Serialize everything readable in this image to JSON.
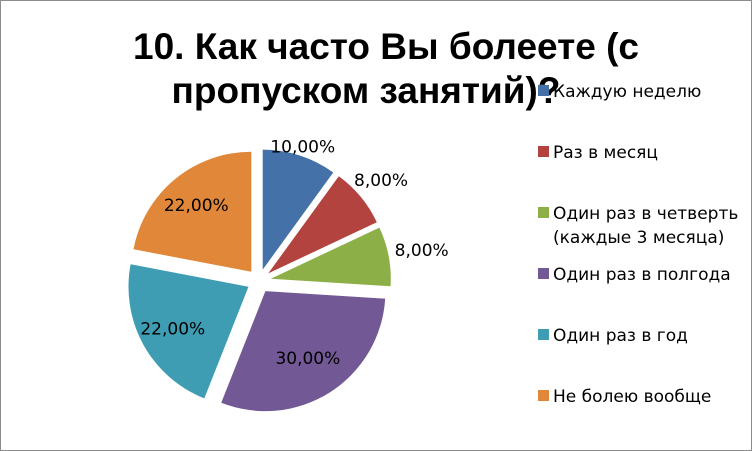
{
  "chart_data": {
    "type": "pie",
    "title_lines": [
      "10. Как часто Вы болеете (с",
      "пропуском занятий)?"
    ],
    "slices": [
      {
        "label": "Каждую неделю",
        "value": 10,
        "value_label": "10,00%",
        "color": "#4472A8"
      },
      {
        "label": "Раз в месяц",
        "value": 8,
        "value_label": "8,00%",
        "color": "#B2433F"
      },
      {
        "label": "Один раз в четверть (каждые 3 месяца)",
        "legend_lines": [
          "Один раз в четверть",
          "(каждые 3 месяца)"
        ],
        "value": 8,
        "value_label": "8,00%",
        "color": "#8CAF47"
      },
      {
        "label": "Один раз в полгода",
        "value": 30,
        "value_label": "30,00%",
        "color": "#725894"
      },
      {
        "label": "Один раз в год",
        "value": 22,
        "value_label": "22,00%",
        "color": "#3F9DB3"
      },
      {
        "label": "Не болею вообще",
        "value": 22,
        "value_label": "22,00%",
        "color": "#E0873A"
      }
    ],
    "exploded": true,
    "legend_position": "right"
  }
}
